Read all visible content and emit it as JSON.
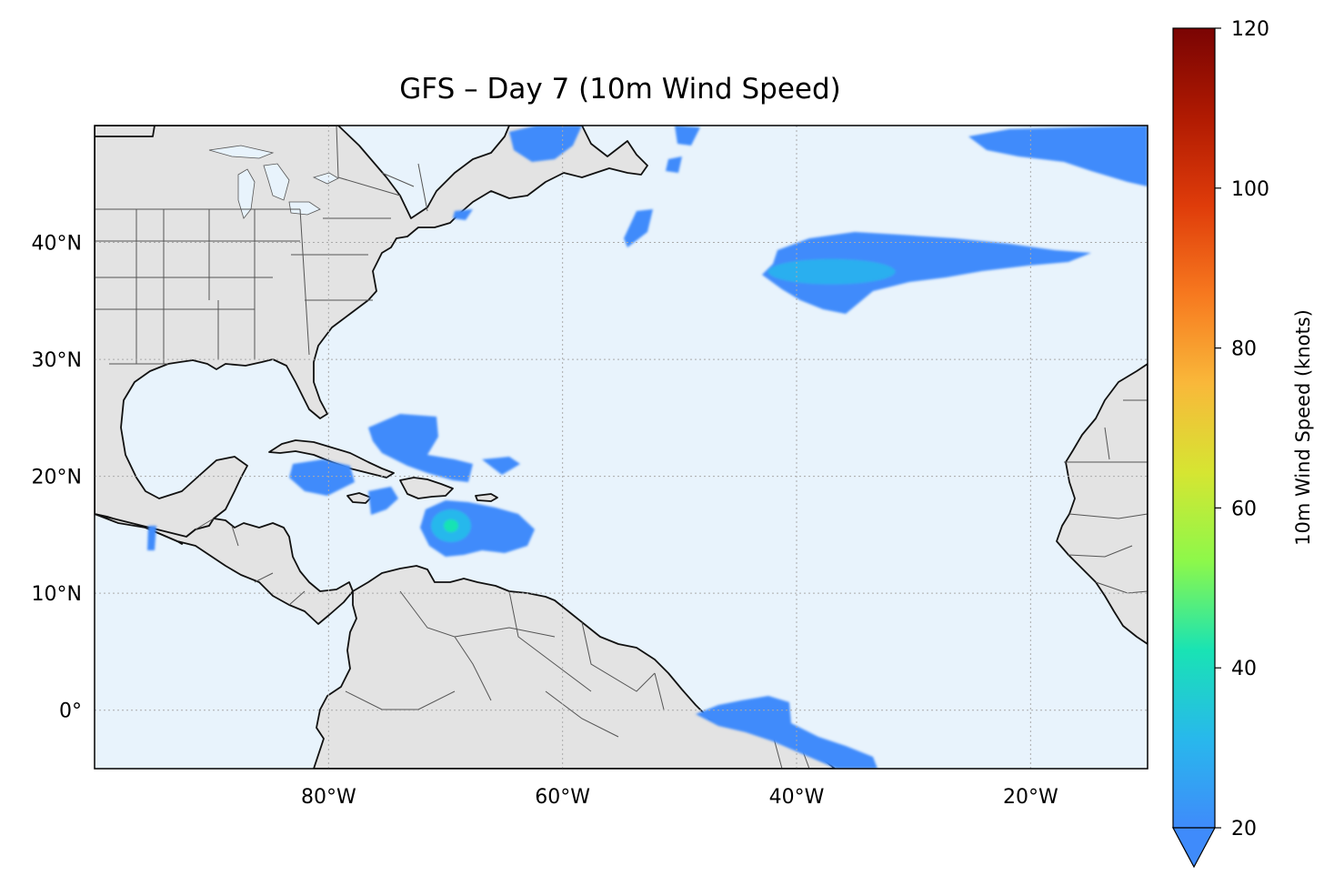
{
  "title": "GFS – Day 7 (10m Wind Speed)",
  "map": {
    "extent": {
      "lon_min": -100,
      "lon_max": -10,
      "lat_min": -5,
      "lat_max": 50
    },
    "ocean_color": "#e8f3fc",
    "land_color": "#e3e3e3",
    "coast_color": "#111111",
    "border_color": "#555555",
    "gridline_color": "#aaaaaa",
    "x_ticks": [
      {
        "lon": -80,
        "label": "80°W"
      },
      {
        "lon": -60,
        "label": "60°W"
      },
      {
        "lon": -40,
        "label": "40°W"
      },
      {
        "lon": -20,
        "label": "20°W"
      }
    ],
    "y_ticks": [
      {
        "lat": 40,
        "label": "40°N"
      },
      {
        "lat": 30,
        "label": "30°N"
      },
      {
        "lat": 20,
        "label": "20°N"
      },
      {
        "lat": 10,
        "label": "10°N"
      },
      {
        "lat": 0,
        "label": "0°"
      }
    ]
  },
  "colorbar": {
    "label": "10m Wind Speed (knots)",
    "min": 20,
    "max": 120,
    "extend": "min",
    "ticks": [
      {
        "value": 20,
        "label": "20"
      },
      {
        "value": 40,
        "label": "40"
      },
      {
        "value": 60,
        "label": "60"
      },
      {
        "value": 80,
        "label": "80"
      },
      {
        "value": 100,
        "label": "100"
      },
      {
        "value": 120,
        "label": "120"
      }
    ],
    "colormap": [
      "#3f8bfb",
      "#28b8ec",
      "#19e3b4",
      "#8df84a",
      "#d6e532",
      "#f9b83a",
      "#f7791f",
      "#df3c0a",
      "#b01a02",
      "#7a0403"
    ]
  },
  "wind_regions": [
    {
      "name": "hurricane-caribbean",
      "lon": -69.5,
      "lat": 15.8,
      "max_knots": 38,
      "visual_class": "strong"
    },
    {
      "name": "north-atlantic-jet",
      "lon": -37,
      "lat": 37.5,
      "max_knots": 30,
      "visual_class": "moderate"
    },
    {
      "name": "northeast-atlantic",
      "lon": -17,
      "lat": 48,
      "max_knots": 27,
      "visual_class": "moderate"
    },
    {
      "name": "equatorial-atlantic",
      "lon": -40,
      "lat": -1,
      "max_knots": 27,
      "visual_class": "moderate"
    },
    {
      "name": "gulf-of-st-lawrence",
      "lon": -61,
      "lat": 48.5,
      "max_knots": 24,
      "visual_class": "weak"
    },
    {
      "name": "bahamas-cuba",
      "lon": -73,
      "lat": 22,
      "max_knots": 24,
      "visual_class": "weak"
    }
  ]
}
